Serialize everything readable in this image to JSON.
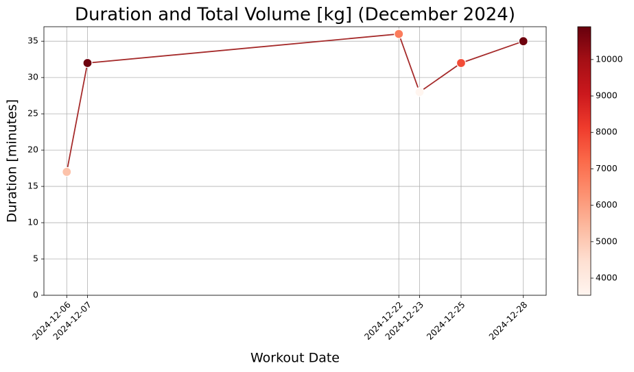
{
  "chart_data": {
    "type": "line_scatter",
    "title": "Duration and Total Volume [kg] (December 2024)",
    "xlabel": "Workout Date",
    "ylabel": "Duration [minutes]",
    "x": [
      "2024-12-06",
      "2024-12-07",
      "2024-12-22",
      "2024-12-23",
      "2024-12-25",
      "2024-12-28"
    ],
    "series": [
      {
        "color": "#a52a2a",
        "values": [
          17,
          32,
          36,
          28,
          32,
          35
        ],
        "volumes": [
          5200,
          10800,
          6800,
          3550,
          7800,
          10800
        ]
      }
    ],
    "xlim": [
      "2024-12-04T21:36",
      "2024-12-29T02:24"
    ],
    "xticks": [
      "2024-12-06",
      "2024-12-07",
      "2024-12-22",
      "2024-12-23",
      "2024-12-25",
      "2024-12-28"
    ],
    "ylim": [
      0,
      37
    ],
    "yticks": [
      0,
      5,
      10,
      15,
      20,
      25,
      30,
      35
    ],
    "grid": true,
    "colorbar": {
      "cmap": "Reds",
      "clim": [
        3530,
        10900
      ],
      "ticks": [
        4000,
        5000,
        6000,
        7000,
        8000,
        9000,
        10000
      ]
    }
  }
}
